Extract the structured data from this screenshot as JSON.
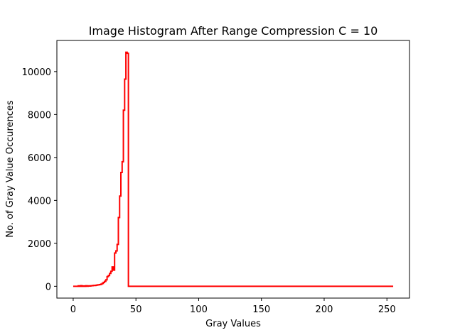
{
  "chart_data": {
    "type": "line",
    "title": "Image Histogram After Range Compression C = 10",
    "xlabel": "Gray Values",
    "ylabel": "No. of Gray Value Occurences",
    "xlim": [
      -13,
      268
    ],
    "ylim": [
      -550,
      11450
    ],
    "x_ticks": [
      0,
      50,
      100,
      150,
      200,
      250
    ],
    "y_ticks": [
      0,
      2000,
      4000,
      6000,
      8000,
      10000
    ],
    "x_tick_labels": [
      "0",
      "50",
      "100",
      "150",
      "200",
      "250"
    ],
    "y_tick_labels": [
      "0",
      "2000",
      "4000",
      "6000",
      "8000",
      "10000"
    ],
    "grid": false,
    "legend": false,
    "series": [
      {
        "color": "#ff0000",
        "drawstyle": "steps",
        "x": [
          0,
          4,
          5,
          6,
          7,
          8,
          9,
          10,
          11,
          12,
          13,
          14,
          15,
          16,
          17,
          18,
          19,
          20,
          21,
          22,
          23,
          24,
          25,
          26,
          27,
          28,
          29,
          30,
          31,
          32,
          33,
          34,
          35,
          36,
          37,
          38,
          39,
          40,
          41,
          42,
          43,
          44,
          45,
          46,
          47,
          255
        ],
        "values": [
          0,
          0,
          20,
          0,
          30,
          0,
          15,
          0,
          25,
          5,
          20,
          10,
          25,
          30,
          40,
          35,
          50,
          60,
          70,
          80,
          100,
          130,
          180,
          230,
          300,
          450,
          500,
          600,
          700,
          900,
          750,
          1550,
          1650,
          1950,
          3200,
          4200,
          5300,
          5800,
          8200,
          9650,
          10900,
          10850,
          0,
          0,
          0,
          0
        ]
      }
    ]
  }
}
